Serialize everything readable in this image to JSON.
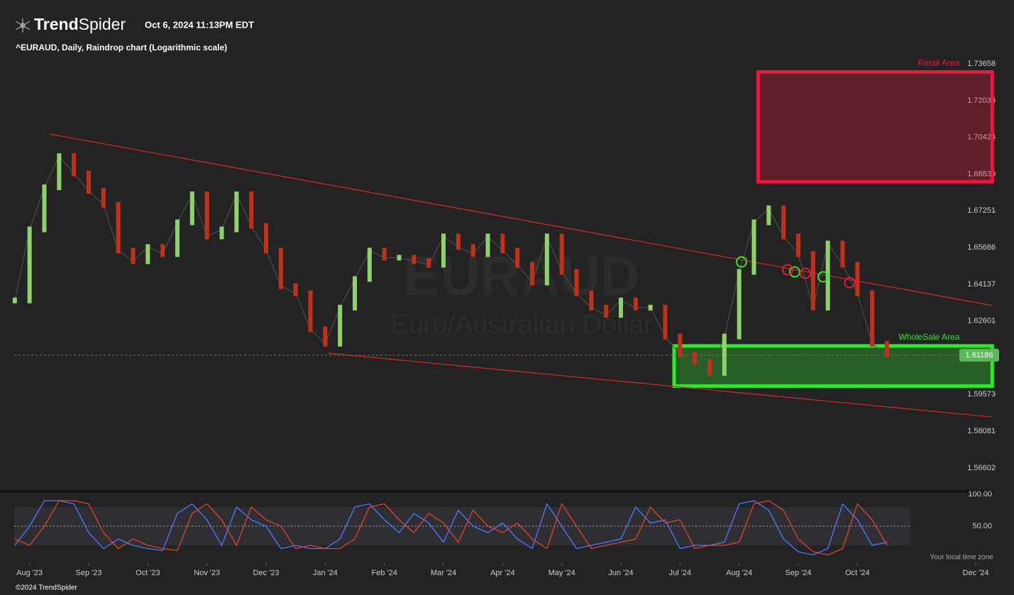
{
  "header": {
    "brand_1": "Trend",
    "brand_2": "Spider",
    "datetime": "Oct 6, 2024 11:13PM EDT",
    "footer": "©2024 TrendSpider",
    "timezone": "Your local time zone"
  },
  "chart_data": [
    {
      "type": "line",
      "title": "^EURAUD, Daily, Raindrop chart (Logarithmic scale)",
      "log_scale": true,
      "watermark": [
        "EURAUD",
        "Euro/Australian Dollar"
      ],
      "x": [
        -0.25,
        0,
        0.25,
        0.5,
        0.75,
        1,
        1.25,
        1.5,
        1.75,
        2,
        2.25,
        2.5,
        2.75,
        3,
        3.25,
        3.5,
        3.75,
        4,
        4.25,
        4.5,
        4.75,
        5,
        5.25,
        5.5,
        5.75,
        6,
        6.25,
        6.5,
        6.75,
        7,
        7.25,
        7.5,
        7.75,
        8,
        8.25,
        8.5,
        8.75,
        9,
        9.25,
        9.5,
        9.75,
        10,
        10.25,
        10.5,
        10.75,
        11,
        11.25,
        11.5,
        11.75,
        12,
        12.25,
        12.5,
        12.75,
        13,
        13.25,
        13.5,
        13.75,
        14,
        14.25,
        14.5
      ],
      "values": [
        1.6346,
        1.6646,
        1.6826,
        1.6961,
        1.6886,
        1.6811,
        1.6751,
        1.6556,
        1.6511,
        1.6571,
        1.6541,
        1.6676,
        1.6796,
        1.6616,
        1.6646,
        1.6796,
        1.6661,
        1.6556,
        1.6406,
        1.6376,
        1.6226,
        1.6166,
        1.6316,
        1.6436,
        1.6556,
        1.6526,
        1.6526,
        1.6511,
        1.6496,
        1.6616,
        1.6571,
        1.6541,
        1.6616,
        1.6556,
        1.6496,
        1.6421,
        1.6616,
        1.6466,
        1.6376,
        1.6316,
        1.6286,
        1.6346,
        1.6316,
        1.6316,
        1.6196,
        1.6121,
        1.6091,
        1.6046,
        1.6196,
        1.6466,
        1.6676,
        1.6736,
        1.6616,
        1.6541,
        1.6316,
        1.6586,
        1.6496,
        1.6376,
        1.6166,
        1.6121
      ],
      "up_color": "#8fd16a",
      "down_color": "#c0301a",
      "ylim": [
        1.5575,
        1.7404
      ],
      "xlim": [
        -0.26,
        16.3
      ],
      "yticks": [
        1.73658,
        1.72034,
        1.70424,
        {
          "value": 1.6883,
          "label": "1.68830"
        },
        1.67251,
        1.65686,
        1.64137,
        1.62601,
        1.59573,
        1.58081,
        1.56602
      ],
      "xticks": [
        {
          "value": 0,
          "label": "Aug '23"
        },
        {
          "value": 1,
          "label": "Sep '23"
        },
        {
          "value": 2,
          "label": "Oct '23"
        },
        {
          "value": 3,
          "label": "Nov '23"
        },
        {
          "value": 4,
          "label": "Dec '23"
        },
        {
          "value": 5,
          "label": "Jan '24"
        },
        {
          "value": 6,
          "label": "Feb '24"
        },
        {
          "value": 7,
          "label": "Mar '24"
        },
        {
          "value": 8,
          "label": "Apr '24"
        },
        {
          "value": 9,
          "label": "May '24"
        },
        {
          "value": 10,
          "label": "Jun '24"
        },
        {
          "value": 11,
          "label": "Jul '24"
        },
        {
          "value": 12,
          "label": "Aug '24"
        },
        {
          "value": 13,
          "label": "Sep '24"
        },
        {
          "value": 14,
          "label": "Oct '24"
        },
        {
          "value": 16,
          "label": "Dec '24"
        }
      ],
      "last_price": 1.61186,
      "zones": [
        {
          "label": "Retail Area",
          "x": [
            12.32,
            16.28
          ],
          "y": [
            1.733,
            1.685
          ],
          "color": "#e8173f"
        },
        {
          "label": "WholeSale Area",
          "x": [
            10.9,
            16.28
          ],
          "y": [
            1.6157,
            1.5992
          ],
          "color": "#2ee82a"
        }
      ],
      "trendlines": [
        {
          "x": [
            0.34,
            16.28
          ],
          "y": [
            1.7057,
            1.6325
          ],
          "color": "#d42a2a"
        },
        {
          "x": [
            5.05,
            16.28
          ],
          "y": [
            1.6127,
            1.5866
          ],
          "color": "#d42a2a"
        }
      ],
      "signals": [
        {
          "x": 12.04,
          "y": 1.6508,
          "color": "#2ee82a"
        },
        {
          "x": 12.94,
          "y": 1.6466,
          "color": "#2ee82a"
        },
        {
          "x": 13.42,
          "y": 1.6445,
          "color": "#2ee82a"
        },
        {
          "x": 12.82,
          "y": 1.6475,
          "color": "#e8173f"
        },
        {
          "x": 13.12,
          "y": 1.646,
          "color": "#e8173f"
        },
        {
          "x": 13.87,
          "y": 1.6421,
          "color": "#e8173f"
        }
      ]
    },
    {
      "type": "line",
      "x": [
        -0.25,
        0,
        0.25,
        0.5,
        0.75,
        1,
        1.25,
        1.5,
        1.75,
        2,
        2.25,
        2.5,
        2.75,
        3,
        3.25,
        3.5,
        3.75,
        4,
        4.25,
        4.5,
        4.75,
        5,
        5.25,
        5.5,
        5.75,
        6,
        6.25,
        6.5,
        6.75,
        7,
        7.25,
        7.5,
        7.75,
        8,
        8.25,
        8.5,
        8.75,
        9,
        9.25,
        9.5,
        9.75,
        10,
        10.25,
        10.5,
        10.75,
        11,
        11.25,
        11.5,
        11.75,
        12,
        12.25,
        12.5,
        12.75,
        13,
        13.25,
        13.5,
        13.75,
        14,
        14.25,
        14.5
      ],
      "series": [
        {
          "color": "#4a7dff",
          "values": [
            20,
            50,
            90,
            90,
            85,
            40,
            15,
            30,
            20,
            15,
            12,
            70,
            85,
            60,
            20,
            80,
            60,
            50,
            15,
            20,
            15,
            15,
            30,
            80,
            85,
            60,
            40,
            70,
            55,
            25,
            75,
            50,
            40,
            55,
            30,
            15,
            85,
            50,
            15,
            20,
            25,
            30,
            80,
            55,
            60,
            15,
            20,
            20,
            25,
            85,
            90,
            75,
            30,
            10,
            5,
            15,
            85,
            60,
            20,
            25
          ]
        },
        {
          "color": "#e0452a",
          "values": [
            30,
            20,
            50,
            90,
            90,
            85,
            40,
            15,
            30,
            20,
            15,
            12,
            70,
            85,
            60,
            20,
            80,
            60,
            50,
            15,
            20,
            15,
            15,
            30,
            80,
            85,
            60,
            40,
            70,
            55,
            25,
            75,
            50,
            40,
            55,
            30,
            15,
            85,
            50,
            15,
            20,
            25,
            30,
            80,
            55,
            60,
            15,
            20,
            20,
            25,
            85,
            90,
            75,
            30,
            10,
            5,
            15,
            85,
            60,
            20
          ]
        }
      ],
      "ylim": [
        0,
        100
      ],
      "yticks": [
        {
          "value": 100,
          "label": "100.00"
        },
        {
          "value": 50,
          "label": "50.00"
        }
      ],
      "band": [
        20,
        80
      ]
    }
  ]
}
